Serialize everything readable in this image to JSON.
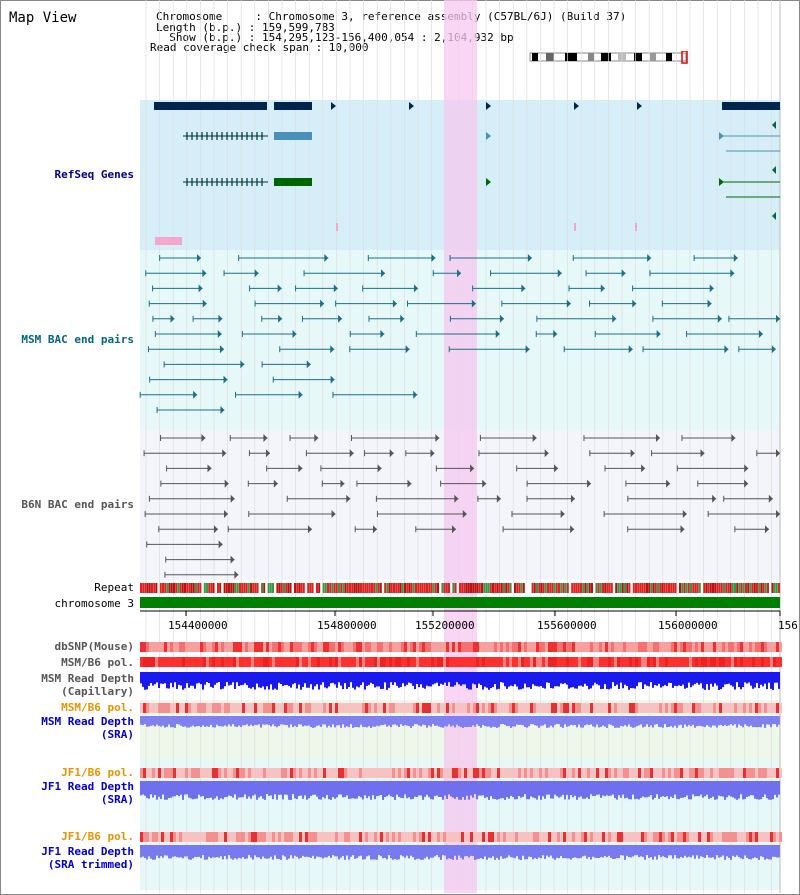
{
  "header": {
    "title": "Map View",
    "chromosome_row": "Chromosome     : Chromosome 3, reference assembly (C57BL/6J) (Build 37)",
    "length_row": "Length (b.p.) : 159,599,783",
    "show_row": "  Show (b.p.) : 154,295,123-156,400,054 : 2,104,932 bp",
    "coverage_row": "Read coverage check span : 10,000"
  },
  "tracks": {
    "refseq": "RefSeq Genes",
    "msm_bac": "MSM BAC end pairs",
    "b6n_bac": "B6N BAC end pairs",
    "repeat": "Repeat",
    "chromosome": "chromosome 3",
    "dbsnp": "dbSNP(Mouse)",
    "msm_pol": "MSM/B6 pol.",
    "msm_depth_cap_1": "MSM Read Depth",
    "msm_depth_cap_2": "(Capillary)",
    "msm_pol_sra": "MSM/B6 pol.",
    "msm_depth_sra_1": "MSM Read Depth",
    "msm_depth_sra_2": "(SRA)",
    "jf1_pol": "JF1/B6 pol.",
    "jf1_depth_1": "JF1 Read Depth",
    "jf1_depth_2": "(SRA)",
    "jf1_pol_trim": "JF1/B6 pol.",
    "jf1_trim_1": "JF1 Read Depth",
    "jf1_trim_2": "(SRA trimmed)"
  },
  "axis": {
    "ticks": [
      "154400000",
      "154800000",
      "155200000",
      "155600000",
      "156000000",
      "156"
    ]
  },
  "colors": {
    "refseq_label": "#00008b",
    "msm_label": "#006680",
    "b6n_label": "#555555",
    "orange_label": "#e69500",
    "blue_label": "#0000cc",
    "highlight": "#f5c8f0"
  }
}
